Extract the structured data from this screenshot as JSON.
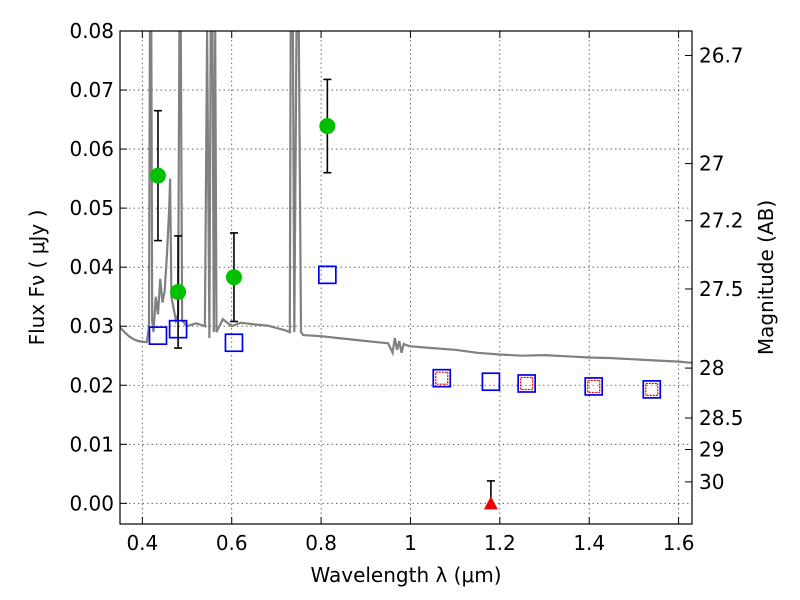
{
  "chart_data": {
    "type": "scatter",
    "xlabel": "Wavelength  λ (μm)",
    "ylabel": "Flux  Fν  ( μJy )",
    "ylabel_right": "Magnitude (AB)",
    "xlim": [
      0.35,
      1.63
    ],
    "ylim": [
      -0.0035,
      0.08
    ],
    "grid": true,
    "x_ticks": [
      0.4,
      0.6,
      0.8,
      1.0,
      1.2,
      1.4,
      1.6
    ],
    "x_tick_labels": [
      "0.4",
      "0.6",
      "0.8",
      "1",
      "1.2",
      "1.4",
      "1.6"
    ],
    "y_ticks": [
      0.0,
      0.01,
      0.02,
      0.03,
      0.04,
      0.05,
      0.06,
      0.07,
      0.08
    ],
    "y_tick_labels": [
      "0.00",
      "0.01",
      "0.02",
      "0.03",
      "0.04",
      "0.05",
      "0.06",
      "0.07",
      "0.08"
    ],
    "mag_ticks": [
      {
        "label": "26.7",
        "mag": 26.7
      },
      {
        "label": "27",
        "mag": 27.0
      },
      {
        "label": "27.2",
        "mag": 27.2
      },
      {
        "label": "27.5",
        "mag": 27.5
      },
      {
        "label": "28",
        "mag": 28.0
      },
      {
        "label": "28.5",
        "mag": 28.5
      },
      {
        "label": "29",
        "mag": 29.0
      },
      {
        "label": "30",
        "mag": 30.0
      }
    ],
    "series": [
      {
        "marker": "circle",
        "color": "#00c000",
        "points": [
          {
            "x": 0.435,
            "y": 0.0555,
            "err": 0.011
          },
          {
            "x": 0.48,
            "y": 0.0358,
            "err": 0.0095
          },
          {
            "x": 0.605,
            "y": 0.0383,
            "err": 0.0075
          },
          {
            "x": 0.814,
            "y": 0.0639,
            "err": 0.0079
          }
        ]
      },
      {
        "marker": "triangle",
        "color": "#ee0000",
        "points": [
          {
            "x": 1.18,
            "y": 0.0,
            "err_low": 0.0,
            "err_high": 0.0038
          }
        ]
      },
      {
        "marker": "open-square",
        "color": "#0000ee",
        "points": [
          {
            "x": 0.435,
            "y": 0.0284
          },
          {
            "x": 0.48,
            "y": 0.0295
          },
          {
            "x": 0.605,
            "y": 0.0272
          },
          {
            "x": 0.814,
            "y": 0.0387
          },
          {
            "x": 1.07,
            "y": 0.0212
          },
          {
            "x": 1.18,
            "y": 0.0206
          },
          {
            "x": 1.26,
            "y": 0.0203
          },
          {
            "x": 1.41,
            "y": 0.0198
          },
          {
            "x": 1.54,
            "y": 0.0193
          }
        ]
      },
      {
        "marker": "small-open-square",
        "color": "#ee0000",
        "points": [
          {
            "x": 1.07,
            "y": 0.0212
          },
          {
            "x": 1.26,
            "y": 0.0203
          },
          {
            "x": 1.41,
            "y": 0.0198
          },
          {
            "x": 1.54,
            "y": 0.0193
          }
        ]
      },
      {
        "type": "line",
        "color": "#808080",
        "points": [
          [
            0.35,
            0.0298
          ],
          [
            0.36,
            0.029
          ],
          [
            0.37,
            0.0283
          ],
          [
            0.38,
            0.0278
          ],
          [
            0.39,
            0.0275
          ],
          [
            0.4,
            0.0274
          ],
          [
            0.41,
            0.0273
          ],
          [
            0.415,
            0.03
          ],
          [
            0.417,
            0.08
          ],
          [
            0.42,
            0.08
          ],
          [
            0.422,
            0.031
          ],
          [
            0.425,
            0.029
          ],
          [
            0.43,
            0.035
          ],
          [
            0.435,
            0.032
          ],
          [
            0.44,
            0.038
          ],
          [
            0.445,
            0.034
          ],
          [
            0.45,
            0.036
          ],
          [
            0.455,
            0.042
          ],
          [
            0.46,
            0.05
          ],
          [
            0.462,
            0.055
          ],
          [
            0.465,
            0.035
          ],
          [
            0.47,
            0.033
          ],
          [
            0.475,
            0.031
          ],
          [
            0.48,
            0.032
          ],
          [
            0.483,
            0.08
          ],
          [
            0.486,
            0.08
          ],
          [
            0.489,
            0.031
          ],
          [
            0.5,
            0.03
          ],
          [
            0.52,
            0.0305
          ],
          [
            0.54,
            0.03
          ],
          [
            0.545,
            0.08
          ],
          [
            0.55,
            0.028
          ],
          [
            0.553,
            0.08
          ],
          [
            0.557,
            0.08
          ],
          [
            0.56,
            0.029
          ],
          [
            0.563,
            0.08
          ],
          [
            0.566,
            0.029
          ],
          [
            0.58,
            0.0312
          ],
          [
            0.6,
            0.03
          ],
          [
            0.62,
            0.0306
          ],
          [
            0.65,
            0.0303
          ],
          [
            0.68,
            0.0301
          ],
          [
            0.7,
            0.0297
          ],
          [
            0.72,
            0.0293
          ],
          [
            0.73,
            0.029
          ],
          [
            0.732,
            0.08
          ],
          [
            0.737,
            0.08
          ],
          [
            0.74,
            0.029
          ],
          [
            0.745,
            0.08
          ],
          [
            0.75,
            0.08
          ],
          [
            0.755,
            0.029
          ],
          [
            0.76,
            0.0285
          ],
          [
            0.8,
            0.0283
          ],
          [
            0.85,
            0.0279
          ],
          [
            0.9,
            0.0275
          ],
          [
            0.95,
            0.0271
          ],
          [
            0.96,
            0.0255
          ],
          [
            0.965,
            0.028
          ],
          [
            0.97,
            0.026
          ],
          [
            0.975,
            0.0275
          ],
          [
            0.98,
            0.0255
          ],
          [
            0.985,
            0.027
          ],
          [
            0.99,
            0.0268
          ],
          [
            1.0,
            0.0266
          ],
          [
            1.05,
            0.0263
          ],
          [
            1.1,
            0.026
          ],
          [
            1.15,
            0.0255
          ],
          [
            1.2,
            0.0252
          ],
          [
            1.25,
            0.025
          ],
          [
            1.3,
            0.0251
          ],
          [
            1.35,
            0.0249
          ],
          [
            1.4,
            0.0247
          ],
          [
            1.45,
            0.0246
          ],
          [
            1.5,
            0.0244
          ],
          [
            1.55,
            0.0242
          ],
          [
            1.6,
            0.024
          ],
          [
            1.63,
            0.0238
          ]
        ]
      }
    ]
  }
}
